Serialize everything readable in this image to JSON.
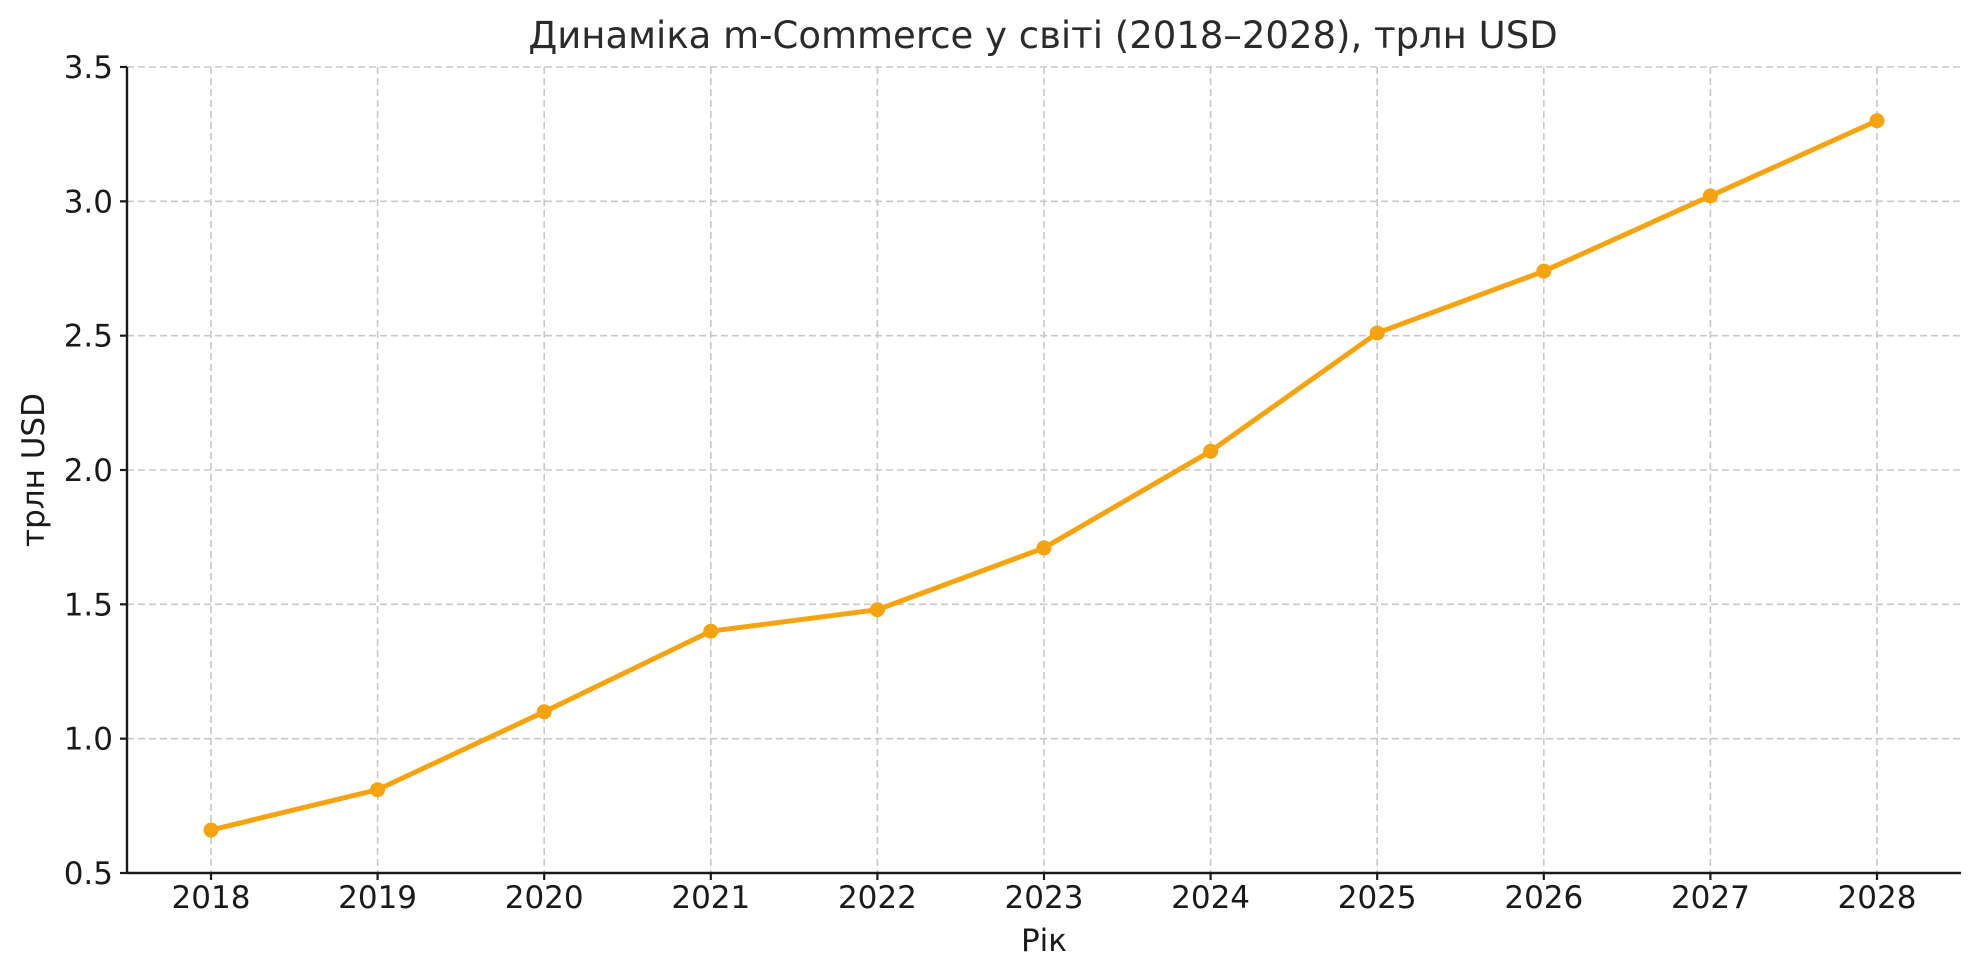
{
  "chart_data": {
    "type": "line",
    "title": "Динаміка m-Commerce у світі (2018–2028), трлн USD",
    "xlabel": "Рік",
    "ylabel": "трлн USD",
    "categories": [
      "2018",
      "2019",
      "2020",
      "2021",
      "2022",
      "2023",
      "2024",
      "2025",
      "2026",
      "2027",
      "2028"
    ],
    "x": [
      2018,
      2019,
      2020,
      2021,
      2022,
      2023,
      2024,
      2025,
      2026,
      2027,
      2028
    ],
    "series": [
      {
        "name": "m-Commerce",
        "values": [
          0.66,
          0.81,
          1.1,
          1.4,
          1.48,
          1.71,
          2.07,
          2.51,
          2.74,
          3.02,
          3.3
        ],
        "color": "#f5a30f",
        "marker": "circle"
      }
    ],
    "ylim": [
      0.5,
      3.5
    ],
    "yticks": [
      "0.5",
      "1.0",
      "1.5",
      "2.0",
      "2.5",
      "3.0",
      "3.5"
    ],
    "ytick_values": [
      0.5,
      1.0,
      1.5,
      2.0,
      2.5,
      3.0,
      3.5
    ],
    "grid": true,
    "grid_style": "dashed",
    "legend": null
  }
}
